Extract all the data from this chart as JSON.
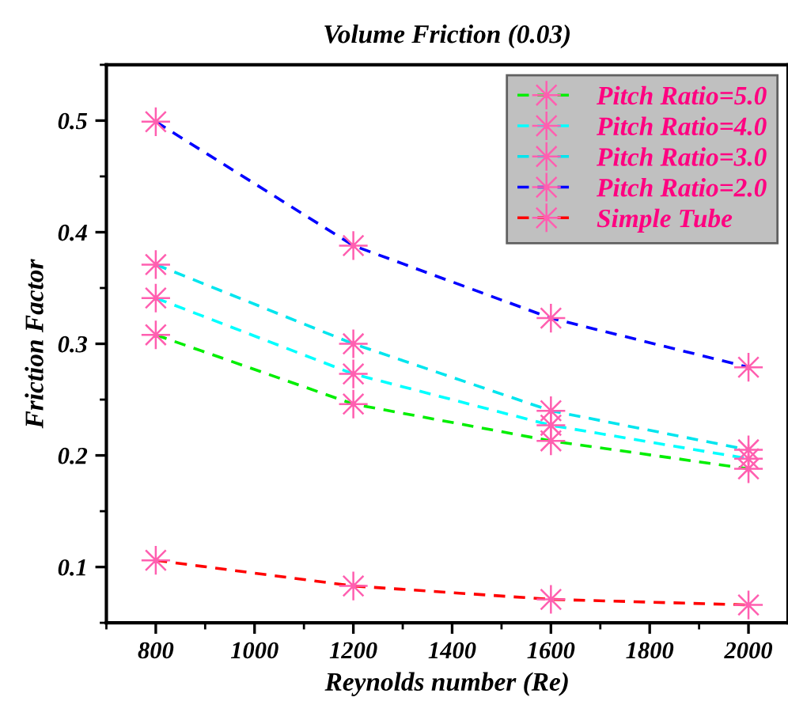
{
  "chart_data": {
    "type": "line",
    "title": "Volume Friction (0.03)",
    "xlabel": "Reynolds number (Re)",
    "ylabel": "Friction Factor",
    "x": [
      800,
      1200,
      1600,
      2000
    ],
    "series": [
      {
        "name": "Pitch Ratio=5.0",
        "color": "#00ee00",
        "values": [
          0.308,
          0.246,
          0.213,
          0.188
        ]
      },
      {
        "name": "Pitch Ratio=4.0",
        "color": "#00ffff",
        "values": [
          0.341,
          0.273,
          0.227,
          0.197
        ]
      },
      {
        "name": "Pitch Ratio=3.0",
        "color": "#00e5ee",
        "values": [
          0.371,
          0.3,
          0.24,
          0.205
        ]
      },
      {
        "name": "Pitch Ratio=2.0",
        "color": "#0000ff",
        "values": [
          0.499,
          0.388,
          0.323,
          0.279
        ]
      },
      {
        "name": "Simple Tube",
        "color": "#ff0000",
        "values": [
          0.106,
          0.083,
          0.071,
          0.066
        ]
      }
    ],
    "xlim": [
      700,
      2080
    ],
    "xticks": [
      800,
      1000,
      1200,
      1400,
      1600,
      1800,
      2000
    ],
    "ylim": [
      0.05,
      0.55
    ],
    "yticks": [
      0.1,
      0.2,
      0.3,
      0.4,
      0.5
    ],
    "grid": false,
    "legend": "top right",
    "marker": "star",
    "line_style": "dashed"
  }
}
